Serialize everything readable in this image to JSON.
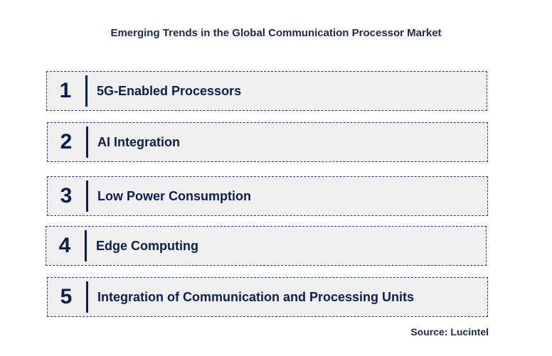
{
  "title": "Emerging Trends in the Global Communication Processor Market",
  "trends": [
    {
      "number": "1",
      "label": "5G-Enabled Processors"
    },
    {
      "number": "2",
      "label": "AI Integration"
    },
    {
      "number": "3",
      "label": "Low Power Consumption"
    },
    {
      "number": "4",
      "label": "Edge Computing"
    },
    {
      "number": "5",
      "label": "Integration of Communication and Processing Units"
    }
  ],
  "source": "Source: Lucintel",
  "colors": {
    "text": "#0b1f4d",
    "box_fill": "#efefef",
    "box_border": "#2b3f6b"
  }
}
